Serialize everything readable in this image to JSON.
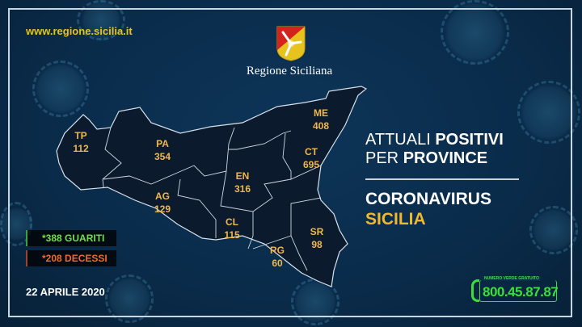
{
  "header": {
    "url": "www.regione.sicilia.it",
    "logo_text": "Regione Siciliana"
  },
  "title": {
    "line1_light": "ATTUALI ",
    "line1_bold": "POSITIVI",
    "line2_light": "PER ",
    "line2_bold": "PROVINCE"
  },
  "subtitle": {
    "line1": "CORONAVIRUS",
    "line2": "SICILIA"
  },
  "provinces": [
    {
      "code": "TP",
      "value": "112"
    },
    {
      "code": "PA",
      "value": "354"
    },
    {
      "code": "ME",
      "value": "408"
    },
    {
      "code": "CT",
      "value": "695"
    },
    {
      "code": "EN",
      "value": "316"
    },
    {
      "code": "AG",
      "value": "129"
    },
    {
      "code": "CL",
      "value": "115"
    },
    {
      "code": "SR",
      "value": "98"
    },
    {
      "code": "RG",
      "value": "60"
    }
  ],
  "stats": {
    "guariti": "*388 GUARITI",
    "decessi": "*208 DECESSI"
  },
  "date": "22 APRILE 2020",
  "phone": {
    "caption": "NUMERO VERDE GRATUITO",
    "number": "800.45.87.87",
    "icon": "phone-icon"
  },
  "colors": {
    "background": "#0a2b4a",
    "accent_yellow": "#f0b830",
    "label_orange": "#f0b84a",
    "guariti_green": "#6fe04a",
    "decessi_orange": "#f26a2b",
    "phone_green": "#39e03a",
    "map_fill": "#0c1a2e"
  }
}
